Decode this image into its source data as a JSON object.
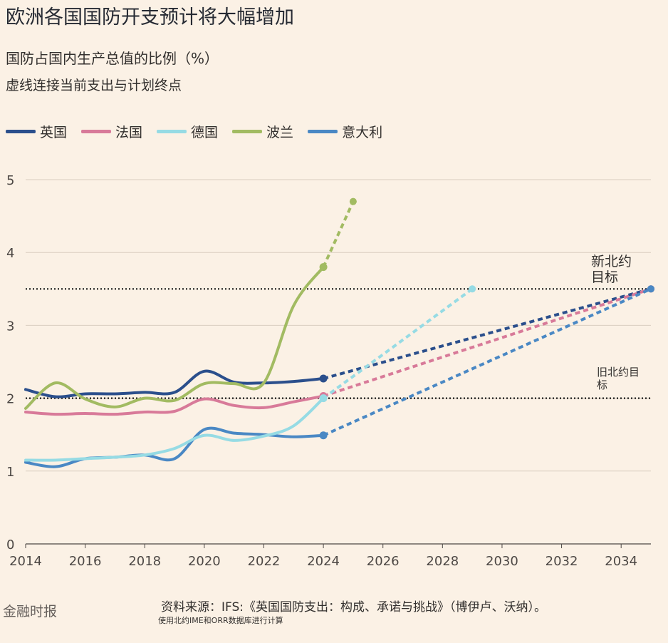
{
  "title": "欧洲各国国防开支预计将大幅增加",
  "subtitle": "国防占国内生产总值的比例（%）",
  "note": "虚线连接当前支出与计划终点",
  "footer": {
    "brand": "金融时报",
    "source": "资料来源：IFS:《英国国防支出：构成、承诺与挑战》（博伊卢、沃纳）。",
    "source2": "使用北约IME和ORR数据库进行计算"
  },
  "chart_data": {
    "type": "line",
    "title": "欧洲各国国防开支预计将大幅增加",
    "ylabel": "国防占国内生产总值的比例（%）",
    "xlim": [
      2014,
      2035
    ],
    "ylim": [
      0,
      5
    ],
    "x_ticks": [
      2014,
      2016,
      2018,
      2020,
      2022,
      2024,
      2026,
      2028,
      2030,
      2032,
      2034
    ],
    "y_ticks": [
      0,
      1,
      2,
      3,
      4,
      5
    ],
    "reference_lines": [
      {
        "label": "新北约目标",
        "value": 3.5
      },
      {
        "label": "旧北约目标",
        "value": 2.0
      }
    ],
    "series": [
      {
        "name": "英国",
        "color": "#2b4f8c",
        "x": [
          2014,
          2015,
          2016,
          2017,
          2018,
          2019,
          2020,
          2021,
          2022,
          2023,
          2024
        ],
        "y": [
          2.12,
          2.02,
          2.06,
          2.06,
          2.08,
          2.08,
          2.37,
          2.22,
          2.21,
          2.23,
          2.27
        ],
        "projection": {
          "x": [
            2024,
            2035
          ],
          "y": [
            2.27,
            3.5
          ]
        }
      },
      {
        "name": "法国",
        "color": "#d87a99",
        "x": [
          2014,
          2015,
          2016,
          2017,
          2018,
          2019,
          2020,
          2021,
          2022,
          2023,
          2024
        ],
        "y": [
          1.81,
          1.78,
          1.79,
          1.78,
          1.81,
          1.82,
          1.99,
          1.9,
          1.87,
          1.95,
          2.03
        ],
        "projection": {
          "x": [
            2024,
            2035
          ],
          "y": [
            2.03,
            3.5
          ]
        }
      },
      {
        "name": "德国",
        "color": "#96dbe4",
        "x": [
          2014,
          2015,
          2016,
          2017,
          2018,
          2019,
          2020,
          2021,
          2022,
          2023,
          2024
        ],
        "y": [
          1.15,
          1.15,
          1.17,
          1.19,
          1.22,
          1.31,
          1.49,
          1.42,
          1.48,
          1.62,
          2.0
        ],
        "projection": {
          "x": [
            2024,
            2029
          ],
          "y": [
            2.0,
            3.5
          ]
        }
      },
      {
        "name": "波兰",
        "color": "#a2bb62",
        "x": [
          2014,
          2015,
          2016,
          2017,
          2018,
          2019,
          2020,
          2021,
          2022,
          2023,
          2024
        ],
        "y": [
          1.86,
          2.21,
          1.99,
          1.88,
          2.0,
          1.97,
          2.2,
          2.2,
          2.21,
          3.27,
          3.8
        ],
        "projection": {
          "x": [
            2024,
            2025
          ],
          "y": [
            3.8,
            4.7
          ]
        }
      },
      {
        "name": "意大利",
        "color": "#4a88c4",
        "x": [
          2014,
          2015,
          2016,
          2017,
          2018,
          2019,
          2020,
          2021,
          2022,
          2023,
          2024
        ],
        "y": [
          1.12,
          1.06,
          1.17,
          1.19,
          1.22,
          1.17,
          1.57,
          1.52,
          1.5,
          1.47,
          1.49
        ],
        "projection": {
          "x": [
            2024,
            2035
          ],
          "y": [
            1.49,
            3.5
          ]
        }
      }
    ]
  }
}
